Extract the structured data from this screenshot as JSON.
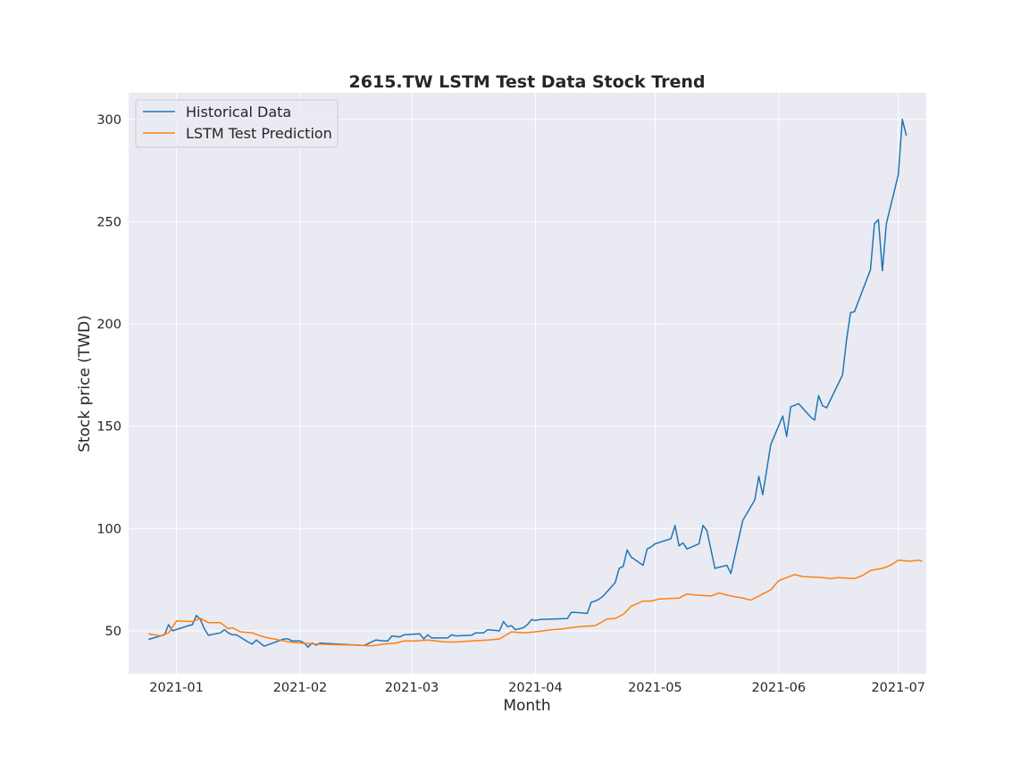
{
  "chart_data": {
    "type": "line",
    "title": "2615.TW  LSTM Test Data Stock Trend",
    "xlabel": "Month",
    "ylabel": "Stock price (TWD)",
    "x_ticks": [
      "2021-01",
      "2021-02",
      "2021-03",
      "2021-04",
      "2021-05",
      "2021-06",
      "2021-07"
    ],
    "y_ticks": [
      50,
      100,
      150,
      200,
      250,
      300
    ],
    "xlim": [
      "2020-12-20",
      "2021-07-08"
    ],
    "ylim": [
      29,
      313
    ],
    "grid": true,
    "legend_position": "upper-left",
    "series": [
      {
        "name": "Historical Data",
        "color": "#1f77b4",
        "points": [
          [
            "2020-12-25",
            45.8
          ],
          [
            "2020-12-28",
            47.5
          ],
          [
            "2020-12-29",
            48.0
          ],
          [
            "2020-12-30",
            53.0
          ],
          [
            "2020-12-31",
            50.0
          ],
          [
            "2021-01-04",
            52.5
          ],
          [
            "2021-01-05",
            53.0
          ],
          [
            "2021-01-06",
            57.5
          ],
          [
            "2021-01-07",
            55.5
          ],
          [
            "2021-01-08",
            51.0
          ],
          [
            "2021-01-09",
            47.8
          ],
          [
            "2021-01-12",
            49.0
          ],
          [
            "2021-01-13",
            50.5
          ],
          [
            "2021-01-14",
            49.0
          ],
          [
            "2021-01-15",
            48.0
          ],
          [
            "2021-01-16",
            48.0
          ],
          [
            "2021-01-19",
            44.5
          ],
          [
            "2021-01-20",
            43.5
          ],
          [
            "2021-01-21",
            45.5
          ],
          [
            "2021-01-22",
            44.0
          ],
          [
            "2021-01-23",
            42.5
          ],
          [
            "2021-01-28",
            46.0
          ],
          [
            "2021-01-29",
            46.0
          ],
          [
            "2021-01-30",
            45.0
          ],
          [
            "2021-02-01",
            45.0
          ],
          [
            "2021-02-02",
            44.0
          ],
          [
            "2021-02-03",
            42.0
          ],
          [
            "2021-02-04",
            44.0
          ],
          [
            "2021-02-05",
            43.0
          ],
          [
            "2021-02-06",
            44.0
          ],
          [
            "2021-02-17",
            42.8
          ],
          [
            "2021-02-20",
            45.5
          ],
          [
            "2021-02-22",
            45.0
          ],
          [
            "2021-02-23",
            45.0
          ],
          [
            "2021-02-24",
            47.5
          ],
          [
            "2021-02-26",
            47.0
          ],
          [
            "2021-02-27",
            48.0
          ],
          [
            "2021-03-03",
            48.5
          ],
          [
            "2021-03-04",
            46.0
          ],
          [
            "2021-03-05",
            48.0
          ],
          [
            "2021-03-06",
            46.5
          ],
          [
            "2021-03-10",
            46.5
          ],
          [
            "2021-03-11",
            48.0
          ],
          [
            "2021-03-12",
            47.5
          ],
          [
            "2021-03-16",
            47.8
          ],
          [
            "2021-03-17",
            49.0
          ],
          [
            "2021-03-19",
            49.0
          ],
          [
            "2021-03-20",
            50.5
          ],
          [
            "2021-03-23",
            50.0
          ],
          [
            "2021-03-24",
            54.5
          ],
          [
            "2021-03-25",
            52.0
          ],
          [
            "2021-03-26",
            52.5
          ],
          [
            "2021-03-27",
            50.5
          ],
          [
            "2021-03-29",
            51.5
          ],
          [
            "2021-03-30",
            53.0
          ],
          [
            "2021-03-31",
            55.5
          ],
          [
            "2021-04-01",
            55.0
          ],
          [
            "2021-04-02",
            55.5
          ],
          [
            "2021-04-09",
            56.0
          ],
          [
            "2021-04-10",
            59.0
          ],
          [
            "2021-04-11",
            59.0
          ],
          [
            "2021-04-14",
            58.5
          ],
          [
            "2021-04-15",
            64.0
          ],
          [
            "2021-04-16",
            64.5
          ],
          [
            "2021-04-17",
            65.5
          ],
          [
            "2021-04-18",
            67.0
          ],
          [
            "2021-04-21",
            73.5
          ],
          [
            "2021-04-22",
            80.5
          ],
          [
            "2021-04-23",
            81.5
          ],
          [
            "2021-04-24",
            89.5
          ],
          [
            "2021-04-25",
            86.0
          ],
          [
            "2021-04-28",
            82.0
          ],
          [
            "2021-04-29",
            90.0
          ],
          [
            "2021-04-30",
            91.0
          ],
          [
            "2021-05-01",
            92.5
          ],
          [
            "2021-05-05",
            95.0
          ],
          [
            "2021-05-06",
            101.5
          ],
          [
            "2021-05-07",
            91.5
          ],
          [
            "2021-05-08",
            93.0
          ],
          [
            "2021-05-09",
            90.0
          ],
          [
            "2021-05-12",
            92.5
          ],
          [
            "2021-05-13",
            101.5
          ],
          [
            "2021-05-14",
            99.0
          ],
          [
            "2021-05-16",
            80.5
          ],
          [
            "2021-05-19",
            82.0
          ],
          [
            "2021-05-20",
            78.0
          ],
          [
            "2021-05-23",
            104.0
          ],
          [
            "2021-05-26",
            114.0
          ],
          [
            "2021-05-27",
            125.5
          ],
          [
            "2021-05-28",
            116.5
          ],
          [
            "2021-05-30",
            141.0
          ],
          [
            "2021-06-02",
            155.0
          ],
          [
            "2021-06-03",
            145.0
          ],
          [
            "2021-06-04",
            159.5
          ],
          [
            "2021-06-06",
            161.0
          ],
          [
            "2021-06-09",
            154.5
          ],
          [
            "2021-06-10",
            153.0
          ],
          [
            "2021-06-11",
            165.0
          ],
          [
            "2021-06-12",
            160.0
          ],
          [
            "2021-06-13",
            159.0
          ],
          [
            "2021-06-17",
            175.0
          ],
          [
            "2021-06-18",
            192.0
          ],
          [
            "2021-06-19",
            205.5
          ],
          [
            "2021-06-20",
            206.0
          ],
          [
            "2021-06-24",
            226.5
          ],
          [
            "2021-06-25",
            249.0
          ],
          [
            "2021-06-26",
            251.0
          ],
          [
            "2021-06-27",
            226.0
          ],
          [
            "2021-06-28",
            249.0
          ],
          [
            "2021-07-01",
            273.0
          ],
          [
            "2021-07-02",
            300.0
          ],
          [
            "2021-07-03",
            292.0
          ]
        ]
      },
      {
        "name": "LSTM Test Prediction",
        "color": "#ff7f0e",
        "points": [
          [
            "2020-12-25",
            48.5
          ],
          [
            "2020-12-28",
            47.5
          ],
          [
            "2020-12-30",
            49.0
          ],
          [
            "2021-01-01",
            54.8
          ],
          [
            "2021-01-05",
            54.5
          ],
          [
            "2021-01-07",
            56.0
          ],
          [
            "2021-01-09",
            54.0
          ],
          [
            "2021-01-12",
            54.0
          ],
          [
            "2021-01-14",
            51.0
          ],
          [
            "2021-01-15",
            51.5
          ],
          [
            "2021-01-17",
            49.5
          ],
          [
            "2021-01-20",
            49.0
          ],
          [
            "2021-01-22",
            47.5
          ],
          [
            "2021-01-24",
            46.5
          ],
          [
            "2021-01-26",
            45.8
          ],
          [
            "2021-01-28",
            45.0
          ],
          [
            "2021-01-30",
            44.3
          ],
          [
            "2021-02-01",
            44.0
          ],
          [
            "2021-02-05",
            43.5
          ],
          [
            "2021-02-10",
            43.2
          ],
          [
            "2021-02-15",
            43.0
          ],
          [
            "2021-02-19",
            42.6
          ],
          [
            "2021-02-22",
            43.5
          ],
          [
            "2021-02-25",
            44.0
          ],
          [
            "2021-02-27",
            45.0
          ],
          [
            "2021-03-02",
            45.0
          ],
          [
            "2021-03-05",
            45.5
          ],
          [
            "2021-03-09",
            44.6
          ],
          [
            "2021-03-12",
            44.5
          ],
          [
            "2021-03-16",
            45.0
          ],
          [
            "2021-03-20",
            45.5
          ],
          [
            "2021-03-23",
            46.0
          ],
          [
            "2021-03-26",
            49.5
          ],
          [
            "2021-03-29",
            49.0
          ],
          [
            "2021-04-01",
            49.5
          ],
          [
            "2021-04-05",
            50.5
          ],
          [
            "2021-04-08",
            51.0
          ],
          [
            "2021-04-12",
            52.0
          ],
          [
            "2021-04-16",
            52.5
          ],
          [
            "2021-04-19",
            55.8
          ],
          [
            "2021-04-21",
            56.0
          ],
          [
            "2021-04-23",
            58.0
          ],
          [
            "2021-04-25",
            62.0
          ],
          [
            "2021-04-28",
            64.5
          ],
          [
            "2021-04-30",
            64.5
          ],
          [
            "2021-05-02",
            65.5
          ],
          [
            "2021-05-07",
            66.0
          ],
          [
            "2021-05-09",
            68.0
          ],
          [
            "2021-05-11",
            67.5
          ],
          [
            "2021-05-15",
            67.0
          ],
          [
            "2021-05-17",
            68.5
          ],
          [
            "2021-05-20",
            67.0
          ],
          [
            "2021-05-23",
            66.0
          ],
          [
            "2021-05-25",
            65.0
          ],
          [
            "2021-05-26",
            66.0
          ],
          [
            "2021-05-30",
            70.0
          ],
          [
            "2021-06-01",
            74.5
          ],
          [
            "2021-06-05",
            77.5
          ],
          [
            "2021-06-07",
            76.5
          ],
          [
            "2021-06-12",
            76.0
          ],
          [
            "2021-06-14",
            75.5
          ],
          [
            "2021-06-16",
            76.0
          ],
          [
            "2021-06-20",
            75.5
          ],
          [
            "2021-06-22",
            77.0
          ],
          [
            "2021-06-24",
            79.5
          ],
          [
            "2021-06-27",
            80.5
          ],
          [
            "2021-06-29",
            82.0
          ],
          [
            "2021-07-01",
            84.5
          ],
          [
            "2021-07-04",
            84.0
          ],
          [
            "2021-07-06",
            84.5
          ],
          [
            "2021-07-07",
            84.0
          ]
        ]
      }
    ]
  }
}
